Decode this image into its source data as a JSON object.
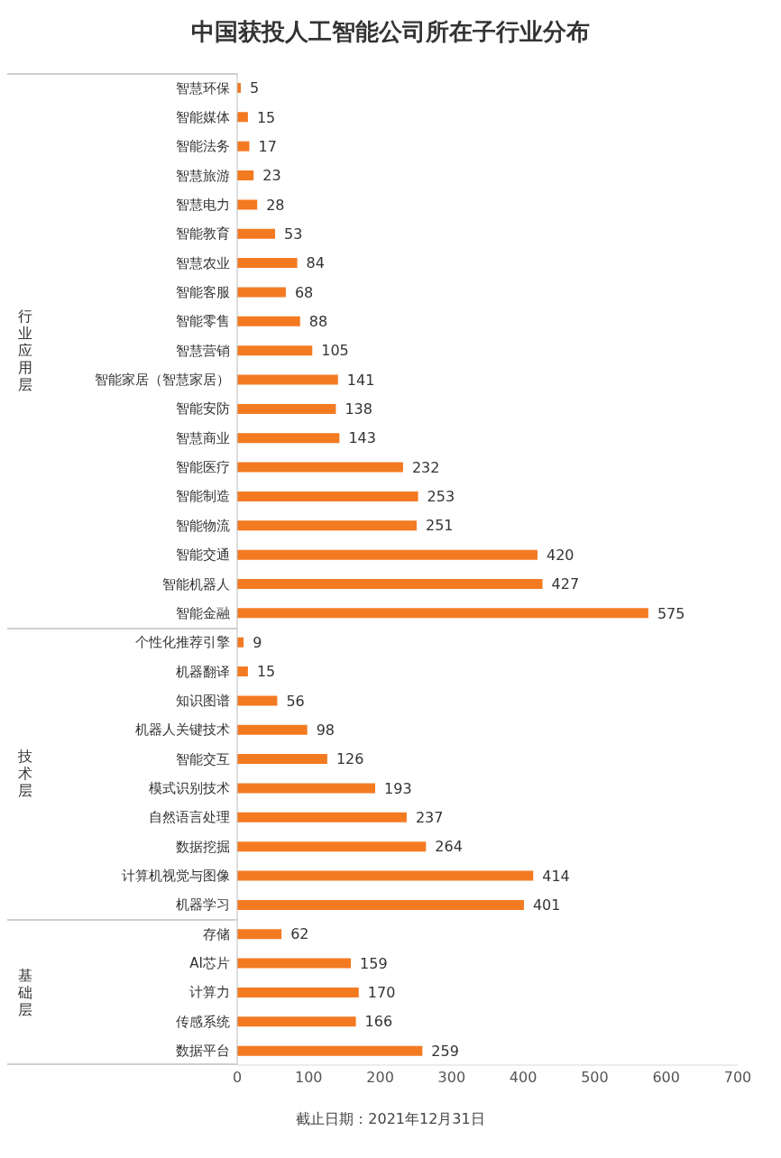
{
  "chart_data": {
    "type": "bar",
    "orientation": "horizontal",
    "title": "中国获投人工智能公司所在子行业分布",
    "categories": [
      "智慧环保",
      "智能媒体",
      "智能法务",
      "智慧旅游",
      "智慧电力",
      "智能教育",
      "智慧农业",
      "智能客服",
      "智能零售",
      "智慧营销",
      "智能家居（智慧家居）",
      "智能安防",
      "智慧商业",
      "智能医疗",
      "智能制造",
      "智能物流",
      "智能交通",
      "智能机器人",
      "智能金融",
      "个性化推荐引擎",
      "机器翻译",
      "知识图谱",
      "机器人关键技术",
      "智能交互",
      "模式识别技术",
      "自然语言处理",
      "数据挖掘",
      "计算机视觉与图像",
      "机器学习",
      "存储",
      "AI芯片",
      "计算力",
      "传感系统",
      "数据平台"
    ],
    "values": [
      5,
      15,
      17,
      23,
      28,
      53,
      84,
      68,
      88,
      105,
      141,
      138,
      143,
      232,
      253,
      251,
      420,
      427,
      575,
      9,
      15,
      56,
      98,
      126,
      193,
      237,
      264,
      414,
      401,
      62,
      159,
      170,
      166,
      259
    ],
    "color": "#f47a22",
    "xlim": [
      0,
      700
    ],
    "xticks": [
      0,
      100,
      200,
      300,
      400,
      500,
      600,
      700
    ],
    "data_labels": true,
    "annotations": [
      "行业应用层",
      "技术层",
      "基础层",
      "截止日期：2021年12月31日"
    ]
  }
}
